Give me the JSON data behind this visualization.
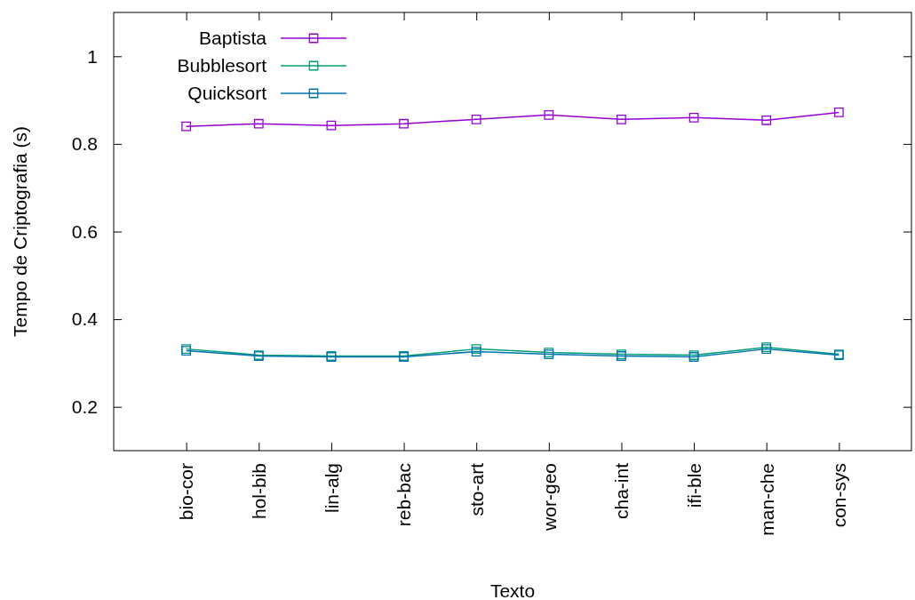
{
  "chart_data": {
    "type": "line",
    "xlabel": "Texto",
    "ylabel": "Tempo de Criptografia (s)",
    "categories": [
      "bio-cor",
      "hol-bib",
      "lin-alg",
      "reb-bac",
      "sto-art",
      "wor-geo",
      "cha-int",
      "ifi-ble",
      "man-che",
      "con-sys"
    ],
    "series": [
      {
        "name": "Baptista",
        "color": "#9400d3",
        "values": [
          0.84,
          0.846,
          0.842,
          0.846,
          0.856,
          0.866,
          0.856,
          0.86,
          0.854,
          0.872
        ]
      },
      {
        "name": "Bubblesort",
        "color": "#009e73",
        "values": [
          0.332,
          0.318,
          0.316,
          0.316,
          0.332,
          0.324,
          0.32,
          0.318,
          0.336,
          0.32
        ]
      },
      {
        "name": "Quicksort",
        "color": "#0072b2",
        "values": [
          0.328,
          0.316,
          0.314,
          0.314,
          0.326,
          0.32,
          0.316,
          0.314,
          0.332,
          0.318
        ]
      }
    ],
    "ylim": [
      0.1,
      1.1
    ],
    "yticks": [
      0.2,
      0.4,
      0.6,
      0.8,
      1
    ],
    "legend": "top left",
    "marker": "square",
    "line_style": "solid",
    "grid": false
  }
}
